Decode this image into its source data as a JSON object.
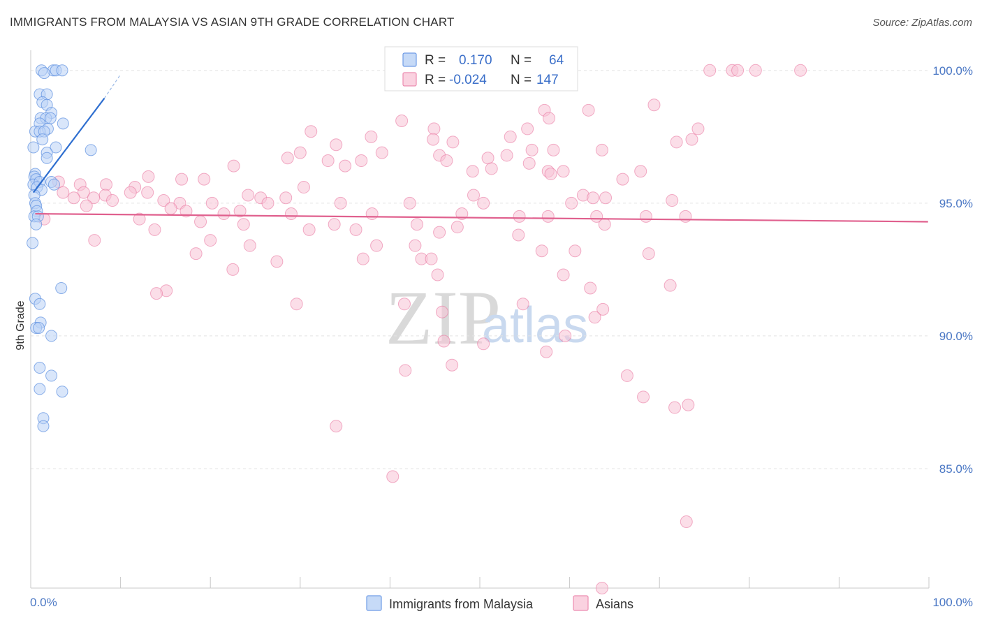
{
  "title": "IMMIGRANTS FROM MALAYSIA VS ASIAN 9TH GRADE CORRELATION CHART",
  "source": "Source: ZipAtlas.com",
  "watermark": {
    "zip": "ZIP",
    "atlas": "atlas"
  },
  "legend": {
    "rows": [
      {
        "r_label": "R =",
        "r_value": "0.170",
        "n_label": "N =",
        "n_value": "64",
        "color": "#8ab4f0"
      },
      {
        "r_label": "R =",
        "r_value": "-0.024",
        "n_label": "N =",
        "n_value": "147",
        "color": "#f4a9c2"
      }
    ]
  },
  "bottom_legend": [
    "Immigrants from Malaysia",
    "Asians"
  ],
  "chart_data": {
    "type": "scatter",
    "title": "IMMIGRANTS FROM MALAYSIA VS ASIAN 9TH GRADE CORRELATION CHART",
    "xlabel": "",
    "ylabel": "9th Grade",
    "xlim": [
      0,
      100
    ],
    "ylim": [
      80.5,
      100.6
    ],
    "x_tick_labels": [
      "0.0%",
      "100.0%"
    ],
    "y_ticks": [
      85,
      90,
      95,
      100
    ],
    "y_tick_labels": [
      "85.0%",
      "90.0%",
      "95.0%",
      "100.0%"
    ],
    "grid": true,
    "series": [
      {
        "name": "Immigrants from Malaysia",
        "color": "#5b8fe0",
        "fill": "#b9d1f5",
        "trend": {
          "x": [
            0.3,
            8.2
          ],
          "y": [
            95.4,
            98.95
          ],
          "dash_to": [
            10.0,
            99.85
          ]
        },
        "points": [
          [
            1.2,
            100.0
          ],
          [
            2.5,
            100.0
          ],
          [
            2.8,
            100.0
          ],
          [
            3.5,
            100.0
          ],
          [
            1.5,
            99.9
          ],
          [
            1.0,
            99.1
          ],
          [
            1.8,
            99.1
          ],
          [
            1.3,
            98.8
          ],
          [
            1.8,
            98.7
          ],
          [
            2.3,
            98.4
          ],
          [
            1.1,
            98.2
          ],
          [
            1.7,
            98.2
          ],
          [
            2.2,
            98.2
          ],
          [
            1.0,
            98.0
          ],
          [
            3.6,
            98.0
          ],
          [
            1.9,
            97.8
          ],
          [
            0.5,
            97.7
          ],
          [
            1.0,
            97.7
          ],
          [
            1.5,
            97.7
          ],
          [
            1.3,
            97.4
          ],
          [
            0.3,
            97.1
          ],
          [
            2.8,
            97.1
          ],
          [
            1.8,
            96.9
          ],
          [
            1.8,
            96.7
          ],
          [
            6.7,
            97.0
          ],
          [
            0.5,
            96.1
          ],
          [
            0.4,
            96.0
          ],
          [
            0.6,
            95.9
          ],
          [
            0.3,
            95.7
          ],
          [
            1.0,
            95.8
          ],
          [
            2.3,
            95.8
          ],
          [
            2.6,
            95.7
          ],
          [
            0.7,
            95.6
          ],
          [
            1.2,
            95.5
          ],
          [
            0.4,
            95.3
          ],
          [
            0.5,
            95.0
          ],
          [
            0.6,
            94.9
          ],
          [
            0.7,
            94.7
          ],
          [
            0.4,
            94.5
          ],
          [
            0.8,
            94.5
          ],
          [
            0.6,
            94.2
          ],
          [
            0.2,
            93.5
          ],
          [
            3.4,
            91.8
          ],
          [
            0.5,
            91.4
          ],
          [
            1.0,
            91.2
          ],
          [
            1.1,
            90.5
          ],
          [
            0.6,
            90.3
          ],
          [
            0.9,
            90.3
          ],
          [
            2.3,
            90.0
          ],
          [
            1.0,
            88.8
          ],
          [
            2.3,
            88.5
          ],
          [
            1.0,
            88.0
          ],
          [
            3.5,
            87.9
          ],
          [
            1.4,
            86.9
          ],
          [
            1.4,
            86.6
          ]
        ]
      },
      {
        "name": "Asians",
        "color": "#e8709a",
        "fill": "#f8c3d5",
        "trend": {
          "x": [
            0.5,
            99.9
          ],
          "y": [
            94.6,
            94.3
          ]
        },
        "points": [
          [
            75.6,
            100.0
          ],
          [
            78.1,
            100.0
          ],
          [
            78.7,
            100.0
          ],
          [
            80.7,
            100.0
          ],
          [
            85.7,
            100.0
          ],
          [
            69.4,
            98.7
          ],
          [
            62.1,
            98.5
          ],
          [
            57.2,
            98.5
          ],
          [
            57.7,
            98.2
          ],
          [
            41.3,
            98.1
          ],
          [
            44.9,
            97.8
          ],
          [
            55.3,
            97.8
          ],
          [
            74.3,
            97.8
          ],
          [
            31.2,
            97.7
          ],
          [
            37.9,
            97.5
          ],
          [
            34.0,
            97.2
          ],
          [
            44.8,
            97.4
          ],
          [
            47.0,
            97.3
          ],
          [
            53.4,
            97.5
          ],
          [
            71.9,
            97.3
          ],
          [
            73.6,
            97.4
          ],
          [
            55.8,
            97.0
          ],
          [
            58.2,
            97.0
          ],
          [
            63.6,
            97.0
          ],
          [
            39.1,
            96.9
          ],
          [
            45.5,
            96.8
          ],
          [
            50.9,
            96.7
          ],
          [
            53.0,
            96.8
          ],
          [
            30.0,
            96.9
          ],
          [
            28.6,
            96.7
          ],
          [
            36.8,
            96.6
          ],
          [
            46.3,
            96.6
          ],
          [
            55.5,
            96.5
          ],
          [
            33.1,
            96.6
          ],
          [
            22.6,
            96.4
          ],
          [
            35.0,
            96.4
          ],
          [
            51.3,
            96.3
          ],
          [
            49.2,
            96.2
          ],
          [
            57.6,
            96.2
          ],
          [
            57.9,
            96.1
          ],
          [
            59.3,
            96.2
          ],
          [
            67.9,
            96.2
          ],
          [
            13.1,
            96.0
          ],
          [
            16.8,
            95.9
          ],
          [
            19.3,
            95.9
          ],
          [
            65.9,
            95.9
          ],
          [
            3.1,
            95.8
          ],
          [
            5.5,
            95.7
          ],
          [
            8.4,
            95.7
          ],
          [
            11.6,
            95.6
          ],
          [
            30.4,
            95.6
          ],
          [
            3.6,
            95.4
          ],
          [
            5.9,
            95.4
          ],
          [
            8.3,
            95.3
          ],
          [
            11.1,
            95.4
          ],
          [
            13.0,
            95.4
          ],
          [
            24.2,
            95.3
          ],
          [
            25.6,
            95.2
          ],
          [
            28.4,
            95.2
          ],
          [
            49.3,
            95.3
          ],
          [
            61.5,
            95.3
          ],
          [
            62.6,
            95.2
          ],
          [
            64.0,
            95.2
          ],
          [
            71.4,
            95.1
          ],
          [
            4.8,
            95.2
          ],
          [
            7.0,
            95.2
          ],
          [
            9.1,
            95.1
          ],
          [
            14.8,
            95.1
          ],
          [
            16.6,
            95.0
          ],
          [
            20.2,
            95.0
          ],
          [
            26.4,
            95.0
          ],
          [
            34.5,
            95.0
          ],
          [
            42.2,
            95.0
          ],
          [
            50.4,
            95.0
          ],
          [
            60.2,
            95.0
          ],
          [
            6.2,
            94.9
          ],
          [
            15.6,
            94.8
          ],
          [
            17.3,
            94.7
          ],
          [
            21.5,
            94.6
          ],
          [
            23.3,
            94.7
          ],
          [
            29.0,
            94.6
          ],
          [
            38.0,
            94.6
          ],
          [
            48.0,
            94.6
          ],
          [
            54.4,
            94.5
          ],
          [
            57.6,
            94.5
          ],
          [
            63.0,
            94.5
          ],
          [
            68.5,
            94.5
          ],
          [
            72.9,
            94.5
          ],
          [
            1.5,
            94.4
          ],
          [
            12.1,
            94.4
          ],
          [
            18.9,
            94.3
          ],
          [
            23.7,
            94.2
          ],
          [
            33.8,
            94.2
          ],
          [
            43.0,
            94.2
          ],
          [
            47.5,
            94.1
          ],
          [
            63.9,
            94.2
          ],
          [
            13.8,
            94.0
          ],
          [
            31.0,
            94.0
          ],
          [
            36.2,
            94.0
          ],
          [
            45.5,
            93.9
          ],
          [
            54.3,
            93.8
          ],
          [
            7.1,
            93.6
          ],
          [
            20.0,
            93.6
          ],
          [
            24.4,
            93.4
          ],
          [
            38.5,
            93.4
          ],
          [
            42.8,
            93.4
          ],
          [
            56.9,
            93.2
          ],
          [
            60.6,
            93.2
          ],
          [
            68.8,
            93.1
          ],
          [
            18.4,
            93.1
          ],
          [
            37.0,
            92.9
          ],
          [
            43.5,
            92.9
          ],
          [
            44.6,
            92.9
          ],
          [
            27.4,
            92.8
          ],
          [
            22.5,
            92.5
          ],
          [
            45.3,
            92.3
          ],
          [
            59.3,
            92.3
          ],
          [
            71.2,
            91.9
          ],
          [
            62.3,
            91.8
          ],
          [
            15.1,
            91.7
          ],
          [
            14.0,
            91.6
          ],
          [
            29.6,
            91.2
          ],
          [
            54.8,
            91.2
          ],
          [
            41.6,
            91.2
          ],
          [
            63.7,
            91.0
          ],
          [
            45.8,
            90.9
          ],
          [
            62.8,
            90.7
          ],
          [
            59.5,
            90.0
          ],
          [
            46.0,
            89.8
          ],
          [
            50.4,
            89.7
          ],
          [
            57.4,
            89.4
          ],
          [
            46.9,
            88.9
          ],
          [
            41.7,
            88.7
          ],
          [
            66.4,
            88.5
          ],
          [
            68.2,
            87.7
          ],
          [
            71.7,
            87.3
          ],
          [
            73.2,
            87.4
          ],
          [
            34.0,
            86.6
          ],
          [
            40.3,
            84.7
          ],
          [
            73.0,
            83.0
          ],
          [
            63.6,
            80.5
          ]
        ]
      }
    ]
  }
}
